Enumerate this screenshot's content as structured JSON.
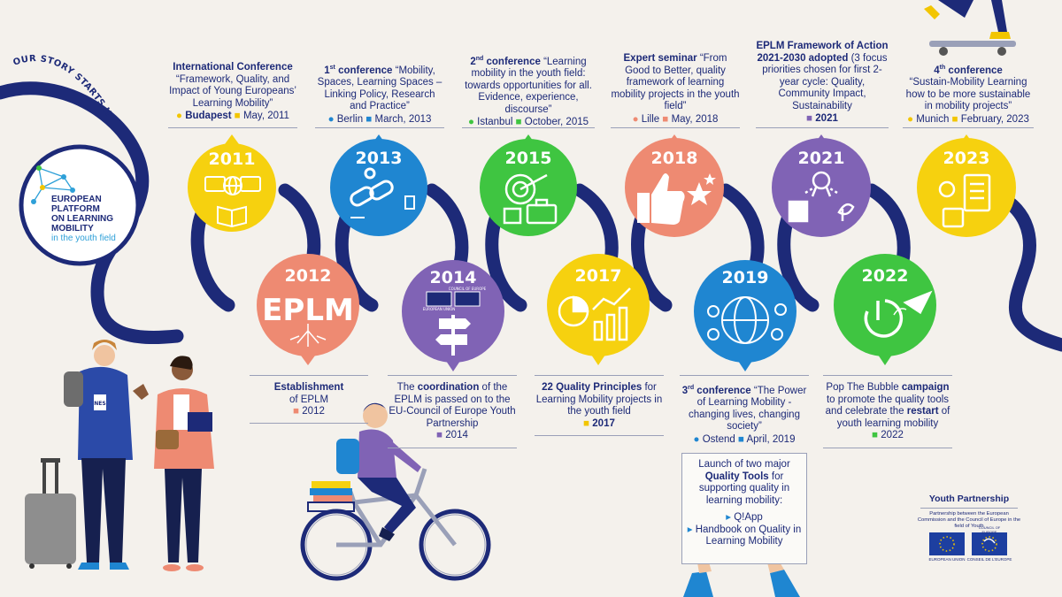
{
  "intro_arc": "OUR STORY STARTS HERE...",
  "logo": {
    "line1": "EUROPEAN PLATFORM",
    "line2": "ON LEARNING MOBILITY",
    "line3": "in the youth field"
  },
  "colors": {
    "navy": "#1d2a78",
    "yellow": "#f6d10f",
    "blue": "#1f86d1",
    "green": "#3fc541",
    "coral": "#ee8a72",
    "purple": "#8063b5",
    "accent_yellow": "#f2c500"
  },
  "milestones": {
    "m2011": {
      "year": "2011",
      "title": "International Conference",
      "text": "“Framework, Quality, and Impact of Young Europeans’ Learning Mobility”",
      "place": "Budapest",
      "date": "May, 2011"
    },
    "m2012": {
      "year": "2012",
      "logo_text": "EPLM",
      "title": "Establishment",
      "text": "of EPLM",
      "date": "2012"
    },
    "m2013": {
      "year": "2013",
      "sup": "st",
      "num": "1",
      "title": "conference",
      "text": "“Mobility, Spaces, Learning Spaces – Linking Policy, Research and Practice”",
      "place": "Berlin",
      "date": "March, 2013"
    },
    "m2014": {
      "year": "2014",
      "pre": "The",
      "title": "coordination",
      "text": "of the EPLM is passed on to the EU-Council of Europe Youth Partnership",
      "date": "2014"
    },
    "m2015": {
      "year": "2015",
      "sup": "nd",
      "num": "2",
      "title": "conference",
      "text": "“Learning mobility in the youth field: towards opportunities for all. Evidence, experience, discourse”",
      "place": "Istanbul",
      "date": "October, 2015"
    },
    "m2017": {
      "year": "2017",
      "title": "22 Quality Principles",
      "text": "for Learning Mobility projects in the youth field",
      "date": "2017"
    },
    "m2018": {
      "year": "2018",
      "title": "Expert seminar",
      "text": "“From Good to Better, quality framework of learning mobility projects in the youth field”",
      "place": "Lille",
      "date": "May, 2018"
    },
    "m2019": {
      "year": "2019",
      "sup": "rd",
      "num": "3",
      "title": "conference",
      "text": "“The Power of Learning Mobility - changing lives, changing society”",
      "place": "Ostend",
      "date": "April, 2019"
    },
    "m2021": {
      "year": "2021",
      "title": "EPLM Framework of Action 2021-2030 adopted",
      "text": "(3 focus priorities chosen for first 2-year cycle: Quality, Community Impact, Sustainability",
      "date": "2021"
    },
    "m2022": {
      "year": "2022",
      "pre": "Pop The Bubble",
      "title": "campaign",
      "text1": "to promote the quality tools and celebrate the",
      "title2": "restart",
      "text2": "of youth learning mobility",
      "date": "2022"
    },
    "m2023": {
      "year": "2023",
      "sup": "th",
      "num": "4",
      "title": "conference",
      "text": "“Sustain-Mobility Learning how to be more sustainable in mobility projects”",
      "place": "Munich",
      "date": "February, 2023"
    }
  },
  "tools_box": {
    "pre": "Launch of two major",
    "title": "Quality Tools",
    "text": "for supporting quality in learning mobility:",
    "item1": "Q!App",
    "item2": "Handbook on Quality in Learning Mobility"
  },
  "partnership": {
    "title": "Youth Partnership",
    "subtitle": "Partnership between the European Commission and the Council of Europe in the field of Youth",
    "eu_label": "EUROPEAN UNION",
    "coe_top": "COUNCIL OF EUROPE",
    "coe_label": "CONSEIL DE L'EUROPE"
  },
  "badge_2014": {
    "eu": "EUROPEAN UNION",
    "coe": "COUNCIL OF EUROPE"
  },
  "person_badge": "NES"
}
